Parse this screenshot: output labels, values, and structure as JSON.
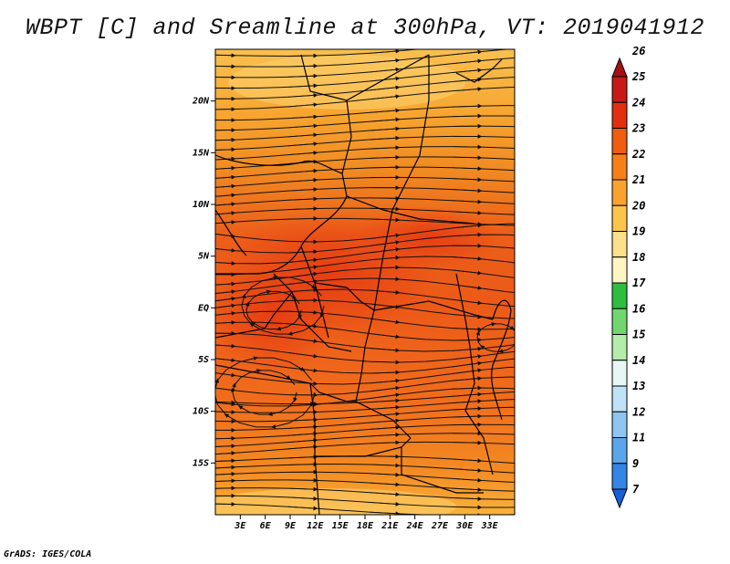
{
  "title": "WBPT [C] and Sreamline at 300hPa, VT: 2019041912",
  "credit": "GrADS: IGES/COLA",
  "map": {
    "lon_range": [
      0,
      36
    ],
    "lat_range": [
      -20,
      25
    ],
    "lat_ticks": [
      {
        "value": 20,
        "label": "20N"
      },
      {
        "value": 15,
        "label": "15N"
      },
      {
        "value": 10,
        "label": "10N"
      },
      {
        "value": 5,
        "label": "5N"
      },
      {
        "value": 0,
        "label": "EQ"
      },
      {
        "value": -5,
        "label": "5S"
      },
      {
        "value": -10,
        "label": "10S"
      },
      {
        "value": -15,
        "label": "15S"
      }
    ],
    "lon_ticks": [
      {
        "value": 3,
        "label": "3E"
      },
      {
        "value": 6,
        "label": "6E"
      },
      {
        "value": 9,
        "label": "9E"
      },
      {
        "value": 12,
        "label": "12E"
      },
      {
        "value": 15,
        "label": "15E"
      },
      {
        "value": 18,
        "label": "18E"
      },
      {
        "value": 21,
        "label": "21E"
      },
      {
        "value": 24,
        "label": "24E"
      },
      {
        "value": 27,
        "label": "27E"
      },
      {
        "value": 30,
        "label": "30E"
      },
      {
        "value": 33,
        "label": "33E"
      }
    ]
  },
  "colorbar": {
    "labels": [
      "26",
      "25",
      "24",
      "23",
      "22",
      "21",
      "20",
      "19",
      "18",
      "17",
      "16",
      "15",
      "14",
      "13",
      "12",
      "11",
      "9",
      "7"
    ],
    "colors": [
      "#a50f15",
      "#c81a14",
      "#e03010",
      "#f05c10",
      "#f77f1a",
      "#f9a22e",
      "#fcc44a",
      "#fde08a",
      "#fdf6c3",
      "#2ebd3f",
      "#6fd76d",
      "#b4ecaa",
      "#e6f7f5",
      "#bfe2f7",
      "#8dc6f2",
      "#5aa6ec",
      "#3385e6",
      "#1860d8"
    ]
  }
}
